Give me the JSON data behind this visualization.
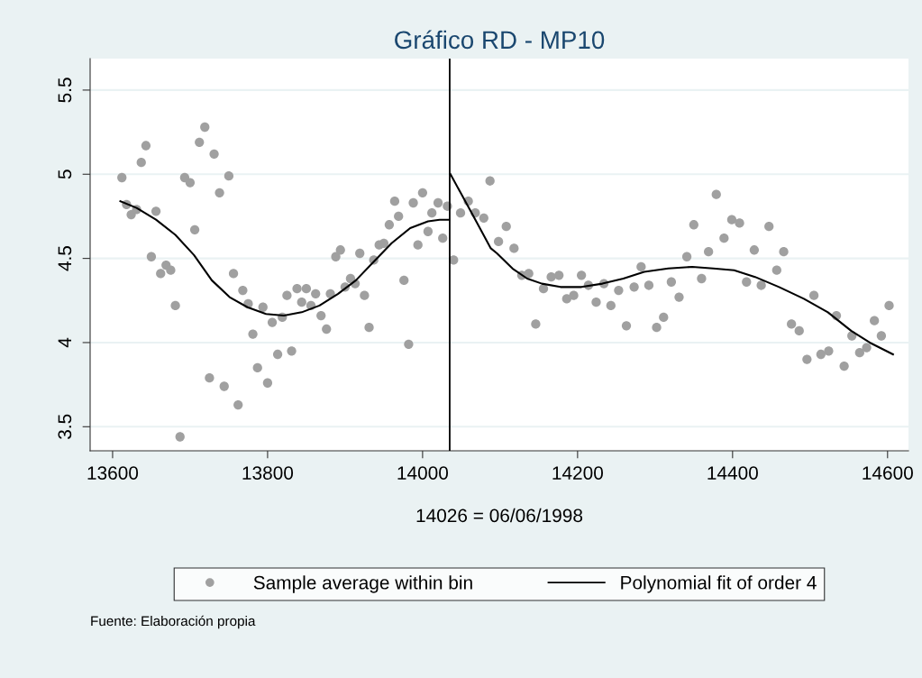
{
  "chart_data": {
    "type": "scatter",
    "title": "Gráfico RD - MP10",
    "xlabel": "14026 = 06/06/1998",
    "annotations": [
      "Fuente: Elaboración propia"
    ],
    "xlim": [
      13571,
      14627
    ],
    "ylim": [
      3.357,
      5.687
    ],
    "xticks": [
      13600,
      13800,
      14000,
      14200,
      14400,
      14600
    ],
    "yticks": [
      3.5,
      4,
      4.5,
      5,
      5.5
    ],
    "grid": "y",
    "legend": "bottom",
    "ref_lines": [
      {
        "axis": "x",
        "value": 14035,
        "color": "#000000"
      }
    ],
    "series": [
      {
        "name": "Sample average within bin",
        "color": "#a0a0a0",
        "marker": "circle",
        "x": [
          13612,
          13618,
          13624,
          13631,
          13637,
          13643,
          13650,
          13656,
          13662,
          13669,
          13675,
          13681,
          13687,
          13693,
          13700,
          13706,
          13712,
          13719,
          13725,
          13731,
          13738,
          13744,
          13750,
          13756,
          13762,
          13768,
          13775,
          13781,
          13787,
          13794,
          13800,
          13806,
          13813,
          13819,
          13825,
          13831,
          13838,
          13844,
          13850,
          13856,
          13862,
          13869,
          13876,
          13881,
          13888,
          13894,
          13900,
          13907,
          13913,
          13919,
          13925,
          13931,
          13937,
          13944,
          13950,
          13957,
          13964,
          13969,
          13976,
          13982,
          13988,
          13994,
          14000,
          14007,
          14012,
          14020,
          14026,
          14032,
          14040,
          14049,
          14059,
          14068,
          14079,
          14087,
          14098,
          14108,
          14118,
          14128,
          14137,
          14146,
          14156,
          14166,
          14176,
          14186,
          14195,
          14205,
          14214,
          14224,
          14234,
          14243,
          14253,
          14263,
          14273,
          14282,
          14292,
          14302,
          14311,
          14321,
          14331,
          14341,
          14350,
          14360,
          14369,
          14379,
          14389,
          14399,
          14409,
          14418,
          14428,
          14437,
          14447,
          14457,
          14466,
          14476,
          14486,
          14496,
          14505,
          14514,
          14524,
          14534,
          14544,
          14554,
          14564,
          14573,
          14583,
          14592,
          14602
        ],
        "values": [
          4.98,
          4.82,
          4.76,
          4.79,
          5.07,
          5.17,
          4.51,
          4.78,
          4.41,
          4.46,
          4.43,
          4.22,
          3.44,
          4.98,
          4.95,
          4.67,
          5.19,
          5.28,
          3.79,
          5.12,
          4.89,
          3.74,
          4.99,
          4.41,
          3.63,
          4.31,
          4.23,
          4.05,
          3.85,
          4.21,
          3.76,
          4.12,
          3.93,
          4.15,
          4.28,
          3.95,
          4.32,
          4.24,
          4.32,
          4.22,
          4.29,
          4.16,
          4.08,
          4.29,
          4.51,
          4.55,
          4.33,
          4.38,
          4.35,
          4.53,
          4.28,
          4.09,
          4.49,
          4.58,
          4.59,
          4.7,
          4.84,
          4.75,
          4.37,
          3.99,
          4.83,
          4.58,
          4.89,
          4.66,
          4.77,
          4.83,
          4.62,
          4.81,
          4.49,
          4.77,
          4.84,
          4.77,
          4.74,
          4.96,
          4.6,
          4.69,
          4.56,
          4.4,
          4.41,
          4.11,
          4.32,
          4.39,
          4.4,
          4.26,
          4.28,
          4.4,
          4.34,
          4.24,
          4.35,
          4.22,
          4.31,
          4.1,
          4.33,
          4.45,
          4.34,
          4.09,
          4.15,
          4.36,
          4.27,
          4.51,
          4.7,
          4.38,
          4.54,
          4.88,
          4.62,
          4.73,
          4.71,
          4.36,
          4.55,
          4.34,
          4.69,
          4.43,
          4.54,
          4.11,
          4.07,
          3.9,
          4.28,
          3.93,
          3.95,
          4.16,
          3.86,
          4.04,
          3.94,
          3.97,
          4.13,
          4.04,
          4.22
        ]
      },
      {
        "name": "Polynomial fit of order 4",
        "type": "line",
        "color": "#000000",
        "line_style": "solid",
        "marker": "none",
        "x": [
          13610,
          13631,
          13656,
          13681,
          13705,
          13728,
          13751,
          13774,
          13798,
          13821,
          13844,
          13867,
          13891,
          13914,
          13937,
          13960,
          13984,
          14007,
          14022,
          14034
        ],
        "values": [
          4.84,
          4.8,
          4.73,
          4.64,
          4.52,
          4.37,
          4.27,
          4.21,
          4.17,
          4.16,
          4.18,
          4.22,
          4.29,
          4.37,
          4.48,
          4.59,
          4.68,
          4.72,
          4.73,
          4.73
        ]
      },
      {
        "type": "line",
        "color": "#000000",
        "line_style": "solid",
        "marker": "none",
        "x": [
          14036,
          14061,
          14088,
          14096,
          14116,
          14135,
          14154,
          14178,
          14205,
          14232,
          14259,
          14286,
          14317,
          14348,
          14375,
          14402,
          14429,
          14460,
          14492,
          14523,
          14553,
          14577,
          14607
        ],
        "values": [
          5.0,
          4.79,
          4.56,
          4.53,
          4.44,
          4.38,
          4.35,
          4.33,
          4.33,
          4.35,
          4.38,
          4.42,
          4.44,
          4.45,
          4.44,
          4.43,
          4.39,
          4.33,
          4.26,
          4.18,
          4.07,
          4.0,
          3.93
        ]
      }
    ]
  }
}
